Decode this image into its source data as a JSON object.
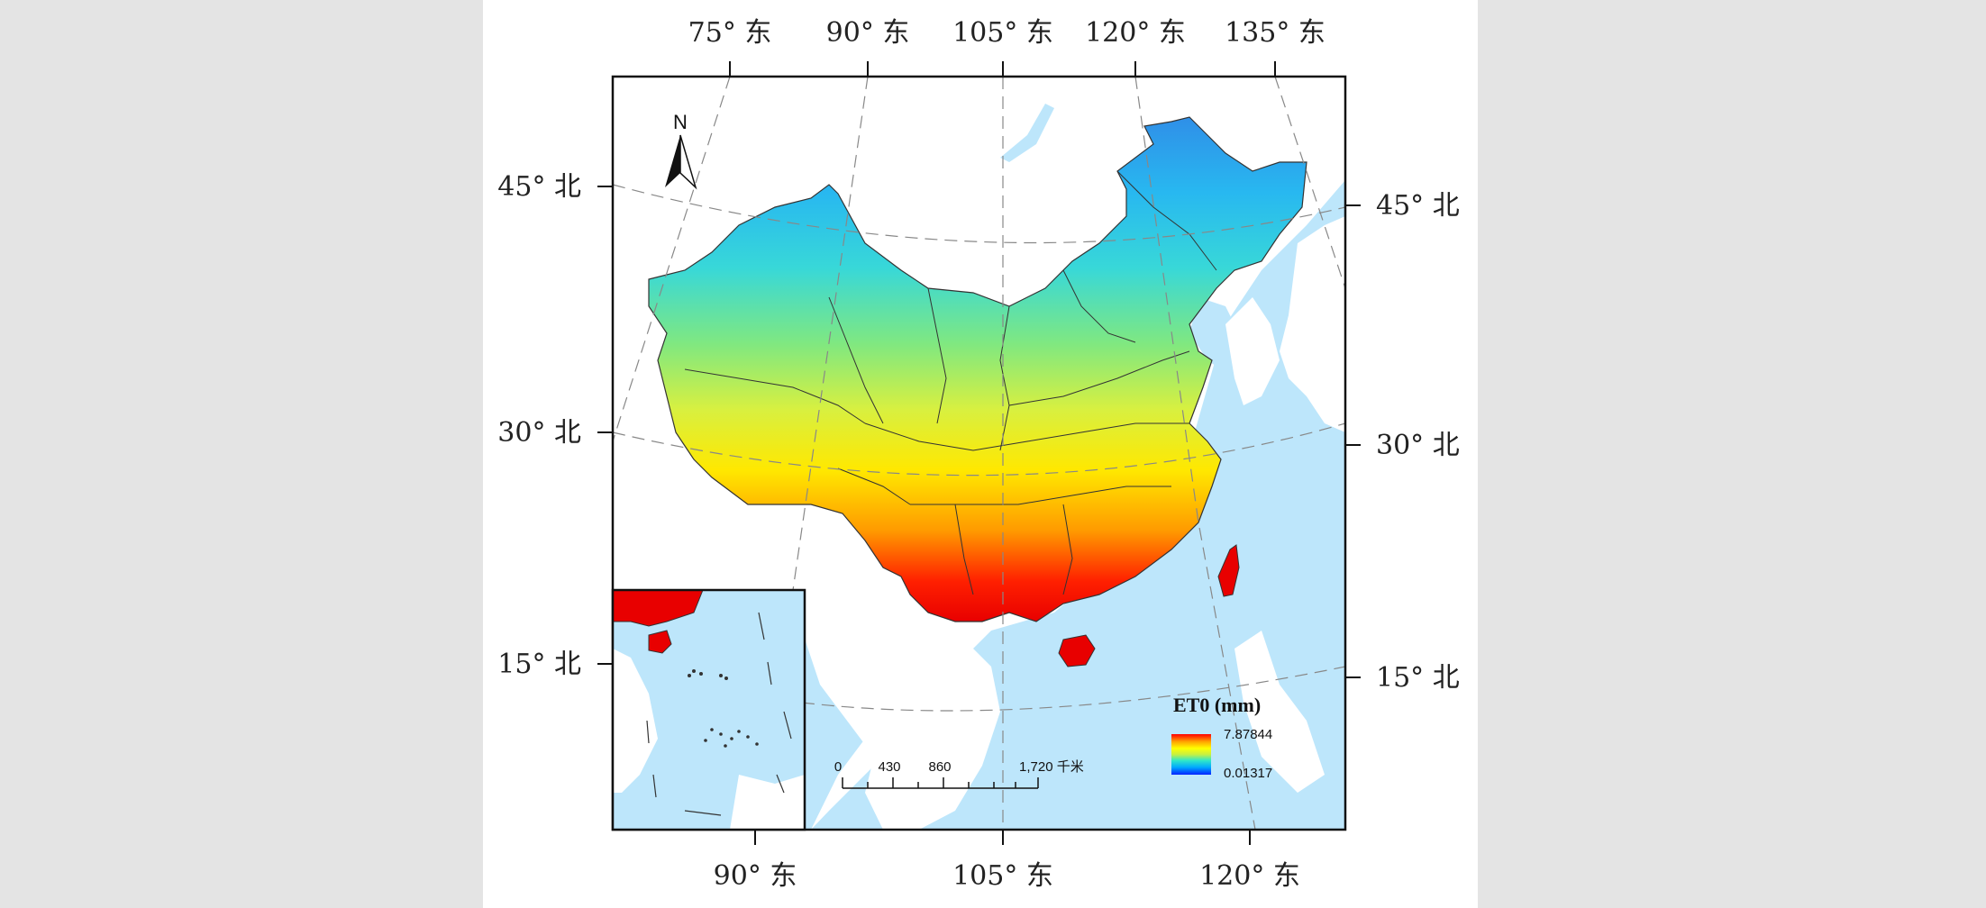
{
  "map": {
    "top_lon_labels": [
      "75° 东",
      "90° 东",
      "105° 东",
      "120° 东",
      "135° 东"
    ],
    "bottom_lon_labels": [
      "90° 东",
      "105° 东",
      "120° 东"
    ],
    "left_lat_labels": [
      "45° 北",
      "30° 北",
      "15° 北"
    ],
    "right_lat_labels": [
      "45° 北",
      "30° 北",
      "15° 北"
    ],
    "north_label": "N"
  },
  "legend": {
    "title": "ET0 (mm)",
    "max_label": "7.87844",
    "min_label": "0.01317",
    "max_value": 7.87844,
    "min_value": 0.01317,
    "colors": [
      "#0022ff",
      "#00a8ff",
      "#30e8c8",
      "#c8f040",
      "#ffff00",
      "#ffa000",
      "#ff0000"
    ]
  },
  "scale_bar": {
    "labels": [
      "0",
      "430",
      "860",
      "1,720 千米"
    ]
  },
  "colors": {
    "sea": "#bde6fb",
    "land_other": "#ffffff",
    "boundary": "#333333",
    "frame": "#111111"
  }
}
